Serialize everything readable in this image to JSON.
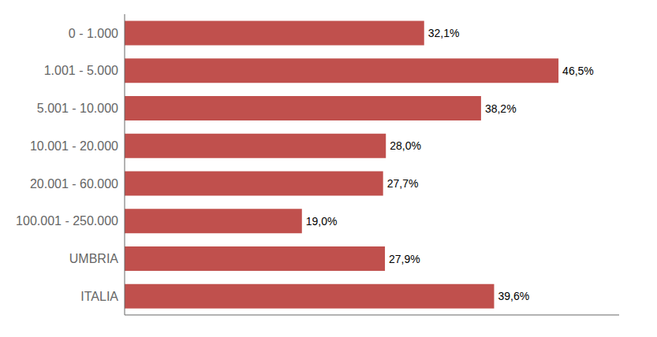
{
  "chart_data": {
    "type": "bar",
    "orientation": "horizontal",
    "categories": [
      "0 - 1.000",
      "1.001 - 5.000",
      "5.001 - 10.000",
      "10.001 - 20.000",
      "20.001 - 60.000",
      "100.001 - 250.000",
      "UMBRIA",
      "ITALIA"
    ],
    "values": [
      32.1,
      46.5,
      38.2,
      28.0,
      27.7,
      19.0,
      27.9,
      39.6
    ],
    "value_labels": [
      "32,1%",
      "46,5%",
      "38,2%",
      "28,0%",
      "27,7%",
      "19,0%",
      "27,9%",
      "39,6%"
    ],
    "data_labels": true,
    "color": "#c0504d",
    "xlim": [
      0,
      53
    ],
    "tick_labels": "y",
    "grid": false
  }
}
